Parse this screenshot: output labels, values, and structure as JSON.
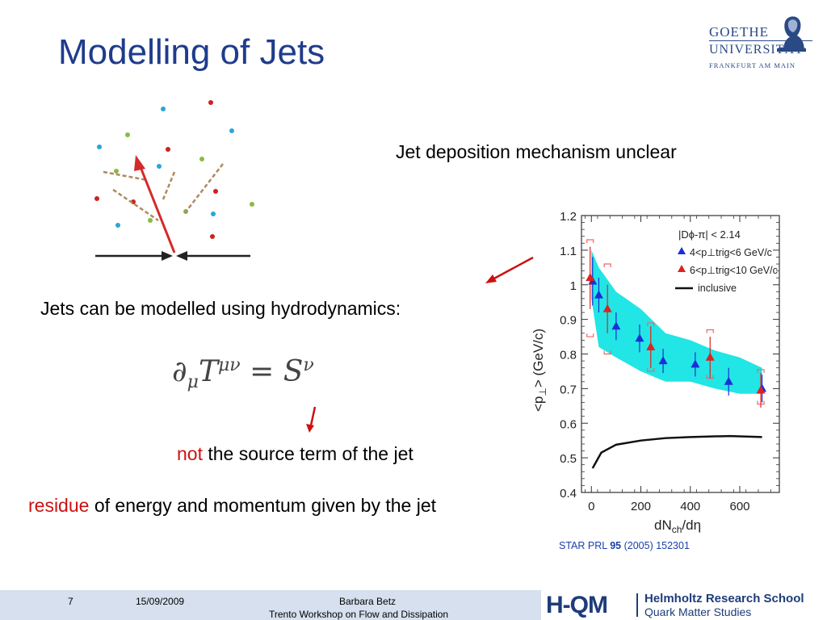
{
  "slide": {
    "title": "Modelling of Jets",
    "text_unclear": "Jet deposition mechanism unclear",
    "text_hydro": "Jets can be modelled using hydrodynamics:",
    "equation": {
      "lhs_op": "∂",
      "lhs_sub": "μ",
      "lhs_T": "T",
      "lhs_sup": "μν",
      "eq": "=",
      "rhs_S": "S",
      "rhs_sup": "ν"
    },
    "not_word": "not",
    "not_rest": " the source term of the jet",
    "residue_word": "residue",
    "residue_rest": " of energy and momentum given by the jet",
    "citation": {
      "prefix": "STAR PRL ",
      "volume": "95",
      "suffix": " (2005) 152301"
    }
  },
  "logo": {
    "line1": "GOETHE",
    "line2": "UNIVERSITÄT",
    "line3": "FRANKFURT AM MAIN"
  },
  "footer": {
    "page": "7",
    "date": "15/09/2009",
    "author": "Barbara Betz",
    "event": "Trento Workshop on Flow and Dissipation",
    "hqm_mark": "H-QM",
    "hqm_line1": "Helmholtz Research School",
    "hqm_line2": "Quark Matter Studies"
  },
  "chart_data": {
    "type": "scatter",
    "xlabel": "dN",
    "xlabel_sub": "ch",
    "xlabel_tail": "/dη",
    "ylabel": "<p",
    "ylabel_sub": "⊥",
    "ylabel_tail": ">  (GeV/c)",
    "xlim": [
      -40,
      760
    ],
    "ylim": [
      0.4,
      1.2
    ],
    "x_ticks": [
      0,
      200,
      400,
      600
    ],
    "y_ticks": [
      0.4,
      0.5,
      0.6,
      0.7,
      0.8,
      0.9,
      1,
      1.1,
      1.2
    ],
    "x_tick_labels": [
      "0",
      "200",
      "400",
      "600"
    ],
    "y_tick_labels": [
      "0.4",
      "0.5",
      "0.6",
      "0.7",
      "0.8",
      "0.9",
      "1",
      "1.1",
      "1.2"
    ],
    "legend_header": "|Dϕ-π| < 2.14",
    "series": [
      {
        "name": "4<p⊥trig<6 GeV/c",
        "color": "#1a2fd6",
        "marker": "triangle",
        "x": [
          5,
          30,
          100,
          195,
          290,
          420,
          555,
          690
        ],
        "y": [
          1.01,
          0.97,
          0.88,
          0.845,
          0.78,
          0.77,
          0.72,
          0.7
        ],
        "err": [
          0.07,
          0.05,
          0.04,
          0.04,
          0.035,
          0.035,
          0.04,
          0.04
        ]
      },
      {
        "name": "6<p⊥trig<10 GeV/c",
        "color": "#dd2222",
        "marker": "triangle",
        "x": [
          -5,
          65,
          240,
          480,
          685
        ],
        "y": [
          1.02,
          0.93,
          0.82,
          0.79,
          0.695
        ],
        "err": [
          0.09,
          0.07,
          0.06,
          0.06,
          0.05
        ]
      },
      {
        "name": "inclusive",
        "color": "#111111",
        "marker": "line",
        "x": [
          5,
          40,
          100,
          200,
          300,
          400,
          500,
          560,
          690
        ],
        "y": [
          0.47,
          0.515,
          0.538,
          0.55,
          0.557,
          0.56,
          0.562,
          0.563,
          0.56
        ]
      }
    ],
    "band": {
      "color": "#22e5e5",
      "x": [
        0,
        30,
        100,
        200,
        300,
        400,
        500,
        600,
        690,
        690,
        600,
        500,
        400,
        300,
        200,
        100,
        30,
        0
      ],
      "y": [
        1.1,
        1.05,
        0.98,
        0.93,
        0.86,
        0.84,
        0.81,
        0.79,
        0.76,
        0.685,
        0.685,
        0.7,
        0.72,
        0.72,
        0.75,
        0.79,
        0.82,
        0.96
      ]
    },
    "sys_brackets": [
      {
        "x": -5,
        "y1": 0.85,
        "y2": 1.13
      },
      {
        "x": 65,
        "y1": 0.8,
        "y2": 1.06
      },
      {
        "x": 240,
        "y1": 0.75,
        "y2": 0.89
      },
      {
        "x": 480,
        "y1": 0.73,
        "y2": 0.87
      },
      {
        "x": 685,
        "y1": 0.655,
        "y2": 0.755
      }
    ]
  }
}
